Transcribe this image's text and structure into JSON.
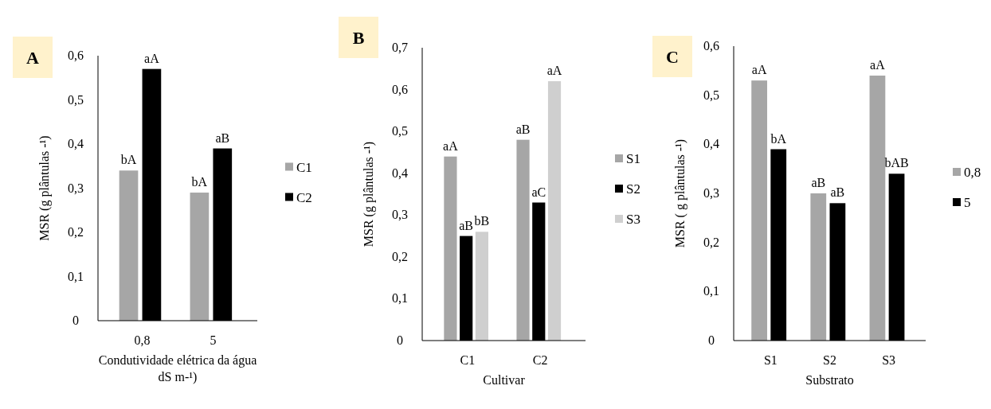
{
  "chart_data": [
    {
      "type": "bar",
      "title": "A",
      "categories": [
        "0,8",
        "5"
      ],
      "xlabel": "Condutividade elétrica da água dS m-¹)",
      "ylabel": "MSR (g plântulas -¹)",
      "ylim": [
        0,
        0.6
      ],
      "yticks": [
        {
          "value": 0,
          "label": "0"
        },
        {
          "value": 0.1,
          "label": "0,1"
        },
        {
          "value": 0.2,
          "label": "0,2"
        },
        {
          "value": 0.3,
          "label": "0,3"
        },
        {
          "value": 0.4,
          "label": "0,4"
        },
        {
          "value": 0.5,
          "label": "0,5"
        },
        {
          "value": 0.6,
          "label": "0,6"
        }
      ],
      "grid": false,
      "legend": "right",
      "series": [
        {
          "name": "C1",
          "color": "#a6a6a6",
          "values": [
            0.34,
            0.29
          ],
          "value_labels": [
            "bA",
            "bA"
          ]
        },
        {
          "name": "C2",
          "color": "#000000",
          "values": [
            0.57,
            0.39
          ],
          "value_labels": [
            "aA",
            "aB"
          ]
        }
      ]
    },
    {
      "type": "bar",
      "title": "B",
      "categories": [
        "C1",
        "C2"
      ],
      "xlabel": "Cultivar",
      "ylabel": "MSR (g plântulas -¹)",
      "ylim": [
        0,
        0.7
      ],
      "yticks": [
        {
          "value": 0,
          "label": "0"
        },
        {
          "value": 0.1,
          "label": "0,1"
        },
        {
          "value": 0.2,
          "label": "0,2"
        },
        {
          "value": 0.3,
          "label": "0,3"
        },
        {
          "value": 0.4,
          "label": "0,4"
        },
        {
          "value": 0.5,
          "label": "0,5"
        },
        {
          "value": 0.6,
          "label": "0,6"
        },
        {
          "value": 0.7,
          "label": "0,7"
        }
      ],
      "grid": false,
      "legend": "right",
      "series": [
        {
          "name": "S1",
          "color": "#a6a6a6",
          "values": [
            0.44,
            0.48
          ],
          "value_labels": [
            "aA",
            "aB"
          ]
        },
        {
          "name": "S2",
          "color": "#000000",
          "values": [
            0.25,
            0.33
          ],
          "value_labels": [
            "aB",
            "aC"
          ]
        },
        {
          "name": "S3",
          "color": "#cfcfcf",
          "values": [
            0.26,
            0.62
          ],
          "value_labels": [
            "bB",
            "aA"
          ]
        }
      ]
    },
    {
      "type": "bar",
      "title": "C",
      "categories": [
        "S1",
        "S2",
        "S3"
      ],
      "xlabel": "Substrato",
      "ylabel": "MSR ( g plântulas -¹)",
      "ylim": [
        0,
        0.6
      ],
      "yticks": [
        {
          "value": 0,
          "label": "0"
        },
        {
          "value": 0.1,
          "label": "0,1"
        },
        {
          "value": 0.2,
          "label": "0,2"
        },
        {
          "value": 0.3,
          "label": "0,3"
        },
        {
          "value": 0.4,
          "label": "0,4"
        },
        {
          "value": 0.5,
          "label": "0,5"
        },
        {
          "value": 0.6,
          "label": "0,6"
        }
      ],
      "grid": false,
      "legend": "right",
      "series": [
        {
          "name": "0,8",
          "color": "#a6a6a6",
          "values": [
            0.53,
            0.3,
            0.54
          ],
          "value_labels": [
            "aA",
            "aB",
            "aA"
          ]
        },
        {
          "name": "5",
          "color": "#000000",
          "values": [
            0.39,
            0.28,
            0.34
          ],
          "value_labels": [
            "bA",
            "aB",
            "bAB"
          ]
        }
      ]
    }
  ]
}
